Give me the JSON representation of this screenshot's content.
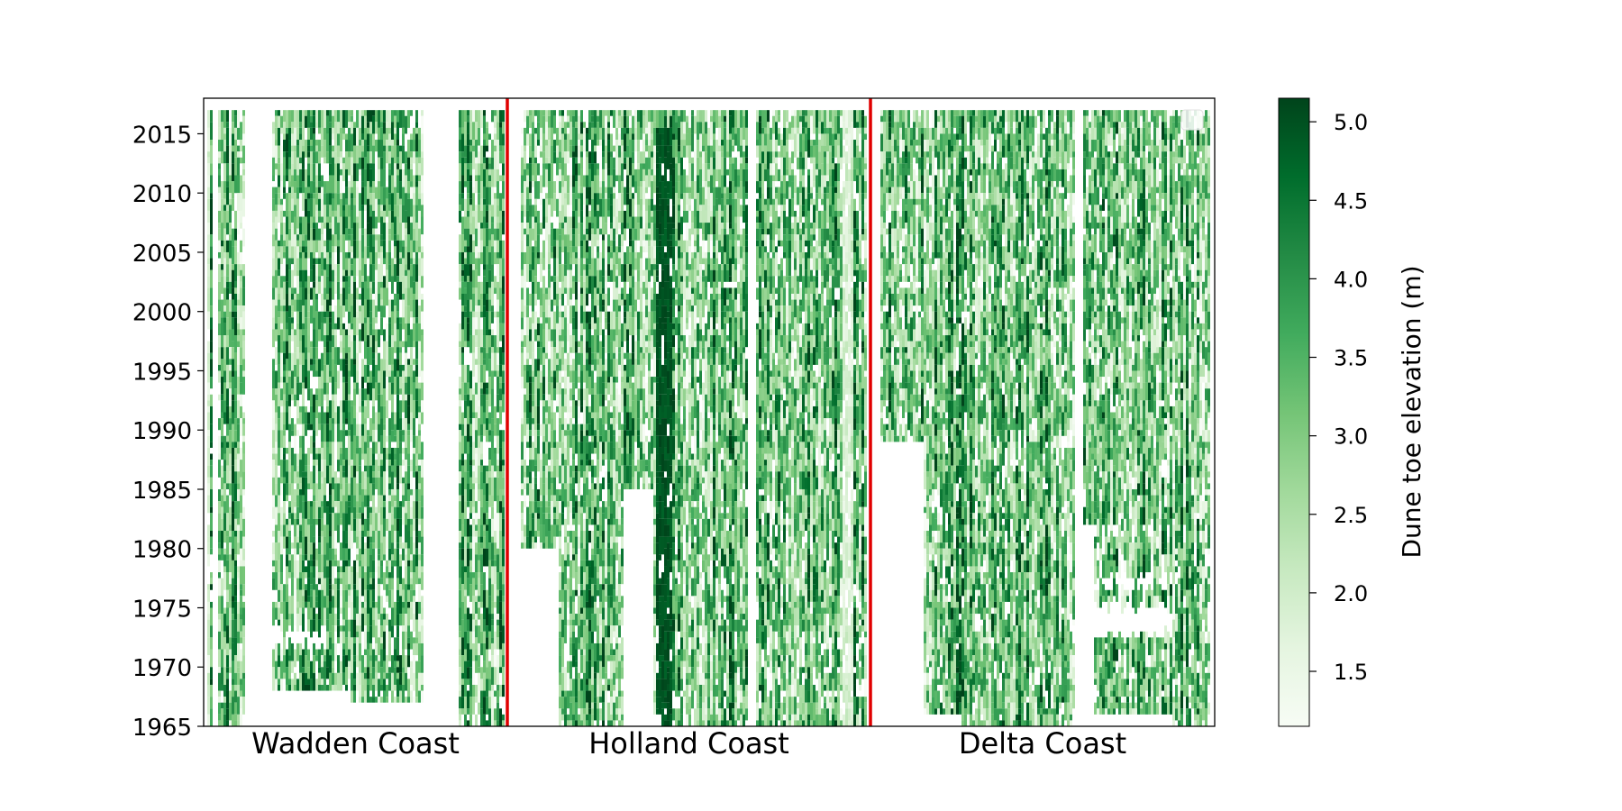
{
  "chart_data": {
    "type": "heatmap",
    "title": "",
    "xlabel": "",
    "ylabel": "",
    "y_range": [
      1965,
      2018
    ],
    "y_ticks": [
      1965,
      1970,
      1975,
      1980,
      1985,
      1990,
      1995,
      2000,
      2005,
      2010,
      2015
    ],
    "x_regions": [
      "Wadden Coast",
      "Holland Coast",
      "Delta Coast"
    ],
    "region_separator_color": "#e00000",
    "colorbar": {
      "label": "Dune toe elevation (m)",
      "range": [
        1.15,
        5.15
      ],
      "ticks": [
        1.5,
        2.0,
        2.5,
        3.0,
        3.5,
        4.0,
        4.5,
        5.0
      ],
      "colormap": "Greens",
      "colors": [
        "#f7fcf5",
        "#e5f5e0",
        "#c7e9c0",
        "#a1d99b",
        "#74c476",
        "#41ab5d",
        "#238b45",
        "#006d2c",
        "#00441b"
      ]
    },
    "legend": "top-right",
    "grid": false
  }
}
